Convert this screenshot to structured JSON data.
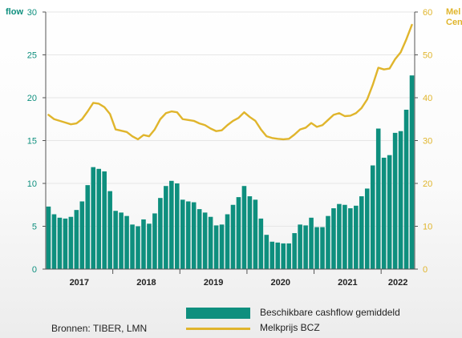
{
  "chart_data": {
    "type": "bar",
    "title": "",
    "x_ticks": [
      "2017",
      "2018",
      "2019",
      "2020",
      "2021",
      "2022"
    ],
    "left_axis": {
      "label_lines": [
        "flow",
        ""
      ],
      "ylim": [
        0,
        30
      ],
      "ticks": [
        0,
        5,
        10,
        15,
        20,
        25,
        30
      ],
      "color": "#0e8f7e"
    },
    "right_axis": {
      "label_lines": [
        "Mel",
        "Cen"
      ],
      "ylim": [
        0,
        60
      ],
      "ticks": [
        0,
        10,
        20,
        30,
        40,
        50,
        60
      ],
      "color": "#e0b52c"
    },
    "grid": true,
    "legend_position": "bottom",
    "series": [
      {
        "name": "Beschikbare cashflow gemiddeld",
        "type": "bar",
        "axis": "left",
        "color": "#0e8f7e",
        "values": [
          7.3,
          6.4,
          6.0,
          5.9,
          6.1,
          6.9,
          7.9,
          9.8,
          11.9,
          11.7,
          11.4,
          9.1,
          6.8,
          6.6,
          6.2,
          5.2,
          5.0,
          5.8,
          5.3,
          6.5,
          8.3,
          9.7,
          10.3,
          10.0,
          8.1,
          7.9,
          7.8,
          7.0,
          6.6,
          6.1,
          5.1,
          5.2,
          6.4,
          7.5,
          8.4,
          9.7,
          8.5,
          8.1,
          5.9,
          4.0,
          3.2,
          3.1,
          3.0,
          3.0,
          4.2,
          5.2,
          5.1,
          6.0,
          4.9,
          4.9,
          6.2,
          7.1,
          7.6,
          7.5,
          7.1,
          7.4,
          8.5,
          9.4,
          12.1,
          16.4,
          13.0,
          13.3,
          15.9,
          16.1,
          18.6,
          22.6
        ]
      },
      {
        "name": "Melkprijs BCZ",
        "type": "line",
        "axis": "right",
        "color": "#e0b52c",
        "values": [
          36.0,
          35.0,
          34.6,
          34.2,
          33.8,
          34.0,
          35.0,
          36.8,
          38.8,
          38.6,
          37.8,
          36.2,
          32.6,
          32.3,
          32.0,
          31.0,
          30.3,
          31.3,
          31.0,
          32.6,
          35.0,
          36.4,
          36.8,
          36.6,
          35.0,
          34.8,
          34.6,
          34.0,
          33.6,
          32.8,
          32.2,
          32.4,
          33.6,
          34.6,
          35.3,
          36.6,
          35.5,
          34.6,
          32.6,
          31.0,
          30.6,
          30.4,
          30.3,
          30.4,
          31.4,
          32.6,
          33.0,
          34.1,
          33.2,
          33.6,
          34.8,
          36.0,
          36.4,
          35.7,
          35.8,
          36.4,
          37.6,
          39.6,
          43.0,
          47.0,
          46.6,
          46.8,
          49.0,
          50.6,
          53.6,
          57.0
        ]
      }
    ],
    "source": "Bronnen: TIBER, LMN"
  }
}
